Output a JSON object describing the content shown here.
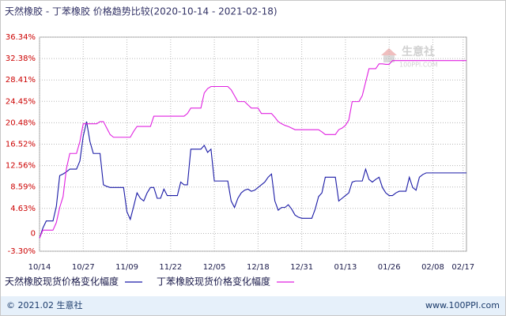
{
  "chart_data": {
    "type": "line",
    "title": "天然橡胶 - 丁苯橡胶 价格趋势比较(2020-10-14 - 2021-02-18)",
    "categories": [
      "10/14",
      null,
      null,
      null,
      null,
      null,
      null,
      null,
      null,
      null,
      null,
      null,
      null,
      "10/27",
      null,
      null,
      null,
      null,
      null,
      null,
      null,
      null,
      null,
      null,
      null,
      null,
      "11/09",
      null,
      null,
      null,
      null,
      null,
      null,
      null,
      null,
      null,
      null,
      null,
      null,
      "11/22",
      null,
      null,
      null,
      null,
      null,
      null,
      null,
      null,
      null,
      null,
      null,
      null,
      "12/05",
      null,
      null,
      null,
      null,
      null,
      null,
      null,
      null,
      null,
      null,
      null,
      null,
      "12/18",
      null,
      null,
      null,
      null,
      null,
      null,
      null,
      null,
      null,
      null,
      null,
      null,
      "12/31",
      null,
      null,
      null,
      null,
      null,
      null,
      null,
      null,
      null,
      null,
      null,
      null,
      "01/13",
      null,
      null,
      null,
      null,
      null,
      null,
      null,
      null,
      null,
      null,
      null,
      null,
      "01/26",
      null,
      null,
      null,
      null,
      null,
      null,
      null,
      null,
      null,
      null,
      null,
      null,
      "02/08",
      null,
      null,
      null,
      null,
      null,
      null,
      null,
      null,
      "02/17",
      null
    ],
    "series": [
      {
        "name": "天然橡胶现货价格变化幅度",
        "color": "#1a1aa6",
        "values": [
          -0.9,
          1.0,
          2.3,
          2.3,
          2.3,
          5.0,
          10.7,
          11.0,
          11.4,
          11.9,
          11.9,
          11.9,
          13.4,
          18.0,
          20.7,
          17.0,
          14.8,
          14.8,
          14.8,
          9.0,
          8.7,
          8.5,
          8.5,
          8.5,
          8.5,
          8.5,
          4.0,
          2.6,
          5.0,
          7.5,
          6.5,
          6.0,
          7.5,
          8.5,
          8.5,
          6.5,
          6.5,
          8.2,
          7.0,
          7.0,
          7.0,
          7.0,
          9.5,
          9.0,
          9.0,
          15.6,
          15.6,
          15.6,
          15.6,
          16.3,
          15.0,
          15.6,
          9.7,
          9.7,
          9.7,
          9.7,
          9.7,
          6.0,
          4.8,
          6.5,
          7.5,
          8.0,
          8.2,
          7.8,
          8.0,
          8.5,
          9.0,
          9.5,
          10.4,
          11.0,
          6.0,
          4.3,
          4.8,
          4.8,
          5.3,
          4.5,
          3.4,
          3.0,
          2.8,
          2.8,
          2.8,
          2.8,
          4.5,
          6.8,
          7.5,
          10.4,
          10.4,
          10.4,
          10.4,
          6.0,
          6.5,
          7.0,
          7.5,
          9.5,
          9.7,
          9.7,
          9.7,
          11.9,
          10.0,
          9.5,
          10.0,
          10.4,
          8.5,
          7.5,
          7.0,
          7.0,
          7.5,
          7.8,
          7.8,
          7.8,
          10.4,
          8.5,
          8.0,
          10.4,
          10.9,
          11.2,
          11.2,
          11.2,
          11.2,
          11.2,
          11.2,
          11.2,
          11.2,
          11.2,
          11.2,
          11.2,
          11.2,
          11.2
        ]
      },
      {
        "name": "丁苯橡胶现货价格变化幅度",
        "color": "#e020e0",
        "values": [
          -0.9,
          0.6,
          0.6,
          0.6,
          0.6,
          2.0,
          4.8,
          6.8,
          12.0,
          14.8,
          14.8,
          14.8,
          17.0,
          20.3,
          20.3,
          20.3,
          20.3,
          20.3,
          20.7,
          20.7,
          19.5,
          18.3,
          17.8,
          17.8,
          17.8,
          17.8,
          17.8,
          17.8,
          18.9,
          19.8,
          19.8,
          19.8,
          19.8,
          19.8,
          21.7,
          21.7,
          21.7,
          21.7,
          21.7,
          21.7,
          21.7,
          21.7,
          21.7,
          21.7,
          22.2,
          23.2,
          23.2,
          23.2,
          23.2,
          26.0,
          26.8,
          27.2,
          27.2,
          27.2,
          27.2,
          27.2,
          27.2,
          26.6,
          25.5,
          24.4,
          24.4,
          24.4,
          23.8,
          23.2,
          23.2,
          23.2,
          22.2,
          22.2,
          22.2,
          22.2,
          21.5,
          20.7,
          20.3,
          20.0,
          19.8,
          19.5,
          19.2,
          19.2,
          19.2,
          19.2,
          19.2,
          19.2,
          19.2,
          19.2,
          18.8,
          18.3,
          18.3,
          18.3,
          18.3,
          19.2,
          19.5,
          20.0,
          21.0,
          24.4,
          24.4,
          24.4,
          25.5,
          28.0,
          30.5,
          30.5,
          30.5,
          31.4,
          31.4,
          31.3,
          31.3,
          32.0,
          32.0,
          32.0,
          32.0,
          32.0,
          32.0,
          32.0,
          32.0,
          32.0,
          32.0,
          32.0,
          32.0,
          32.0,
          32.0,
          32.0,
          32.0,
          32.0,
          32.0,
          32.0,
          32.0,
          32.0,
          32.0,
          32.0
        ]
      }
    ],
    "ylim": [
      -3.3,
      36.34
    ],
    "yticks": [
      {
        "value": -3.3,
        "label": "-3.30%"
      },
      0,
      {
        "value": 4.63,
        "label": "4.63%"
      },
      {
        "value": 8.59,
        "label": "8.59%"
      },
      {
        "value": 12.56,
        "label": "12.56%"
      },
      {
        "value": 16.52,
        "label": "16.52%"
      },
      {
        "value": 20.48,
        "label": "20.48%"
      },
      {
        "value": 24.45,
        "label": "24.45%"
      },
      {
        "value": 28.41,
        "label": "28.41%"
      },
      {
        "value": 32.38,
        "label": "32.38%"
      },
      {
        "value": 36.34,
        "label": "36.34%"
      }
    ],
    "grid": true,
    "legend": "bottom",
    "watermark": {
      "brand": "生意社",
      "site": "100PPI.COM"
    },
    "footer": {
      "copyright": "© 2021.02 生意社",
      "site": "www.100PPI.com"
    }
  }
}
